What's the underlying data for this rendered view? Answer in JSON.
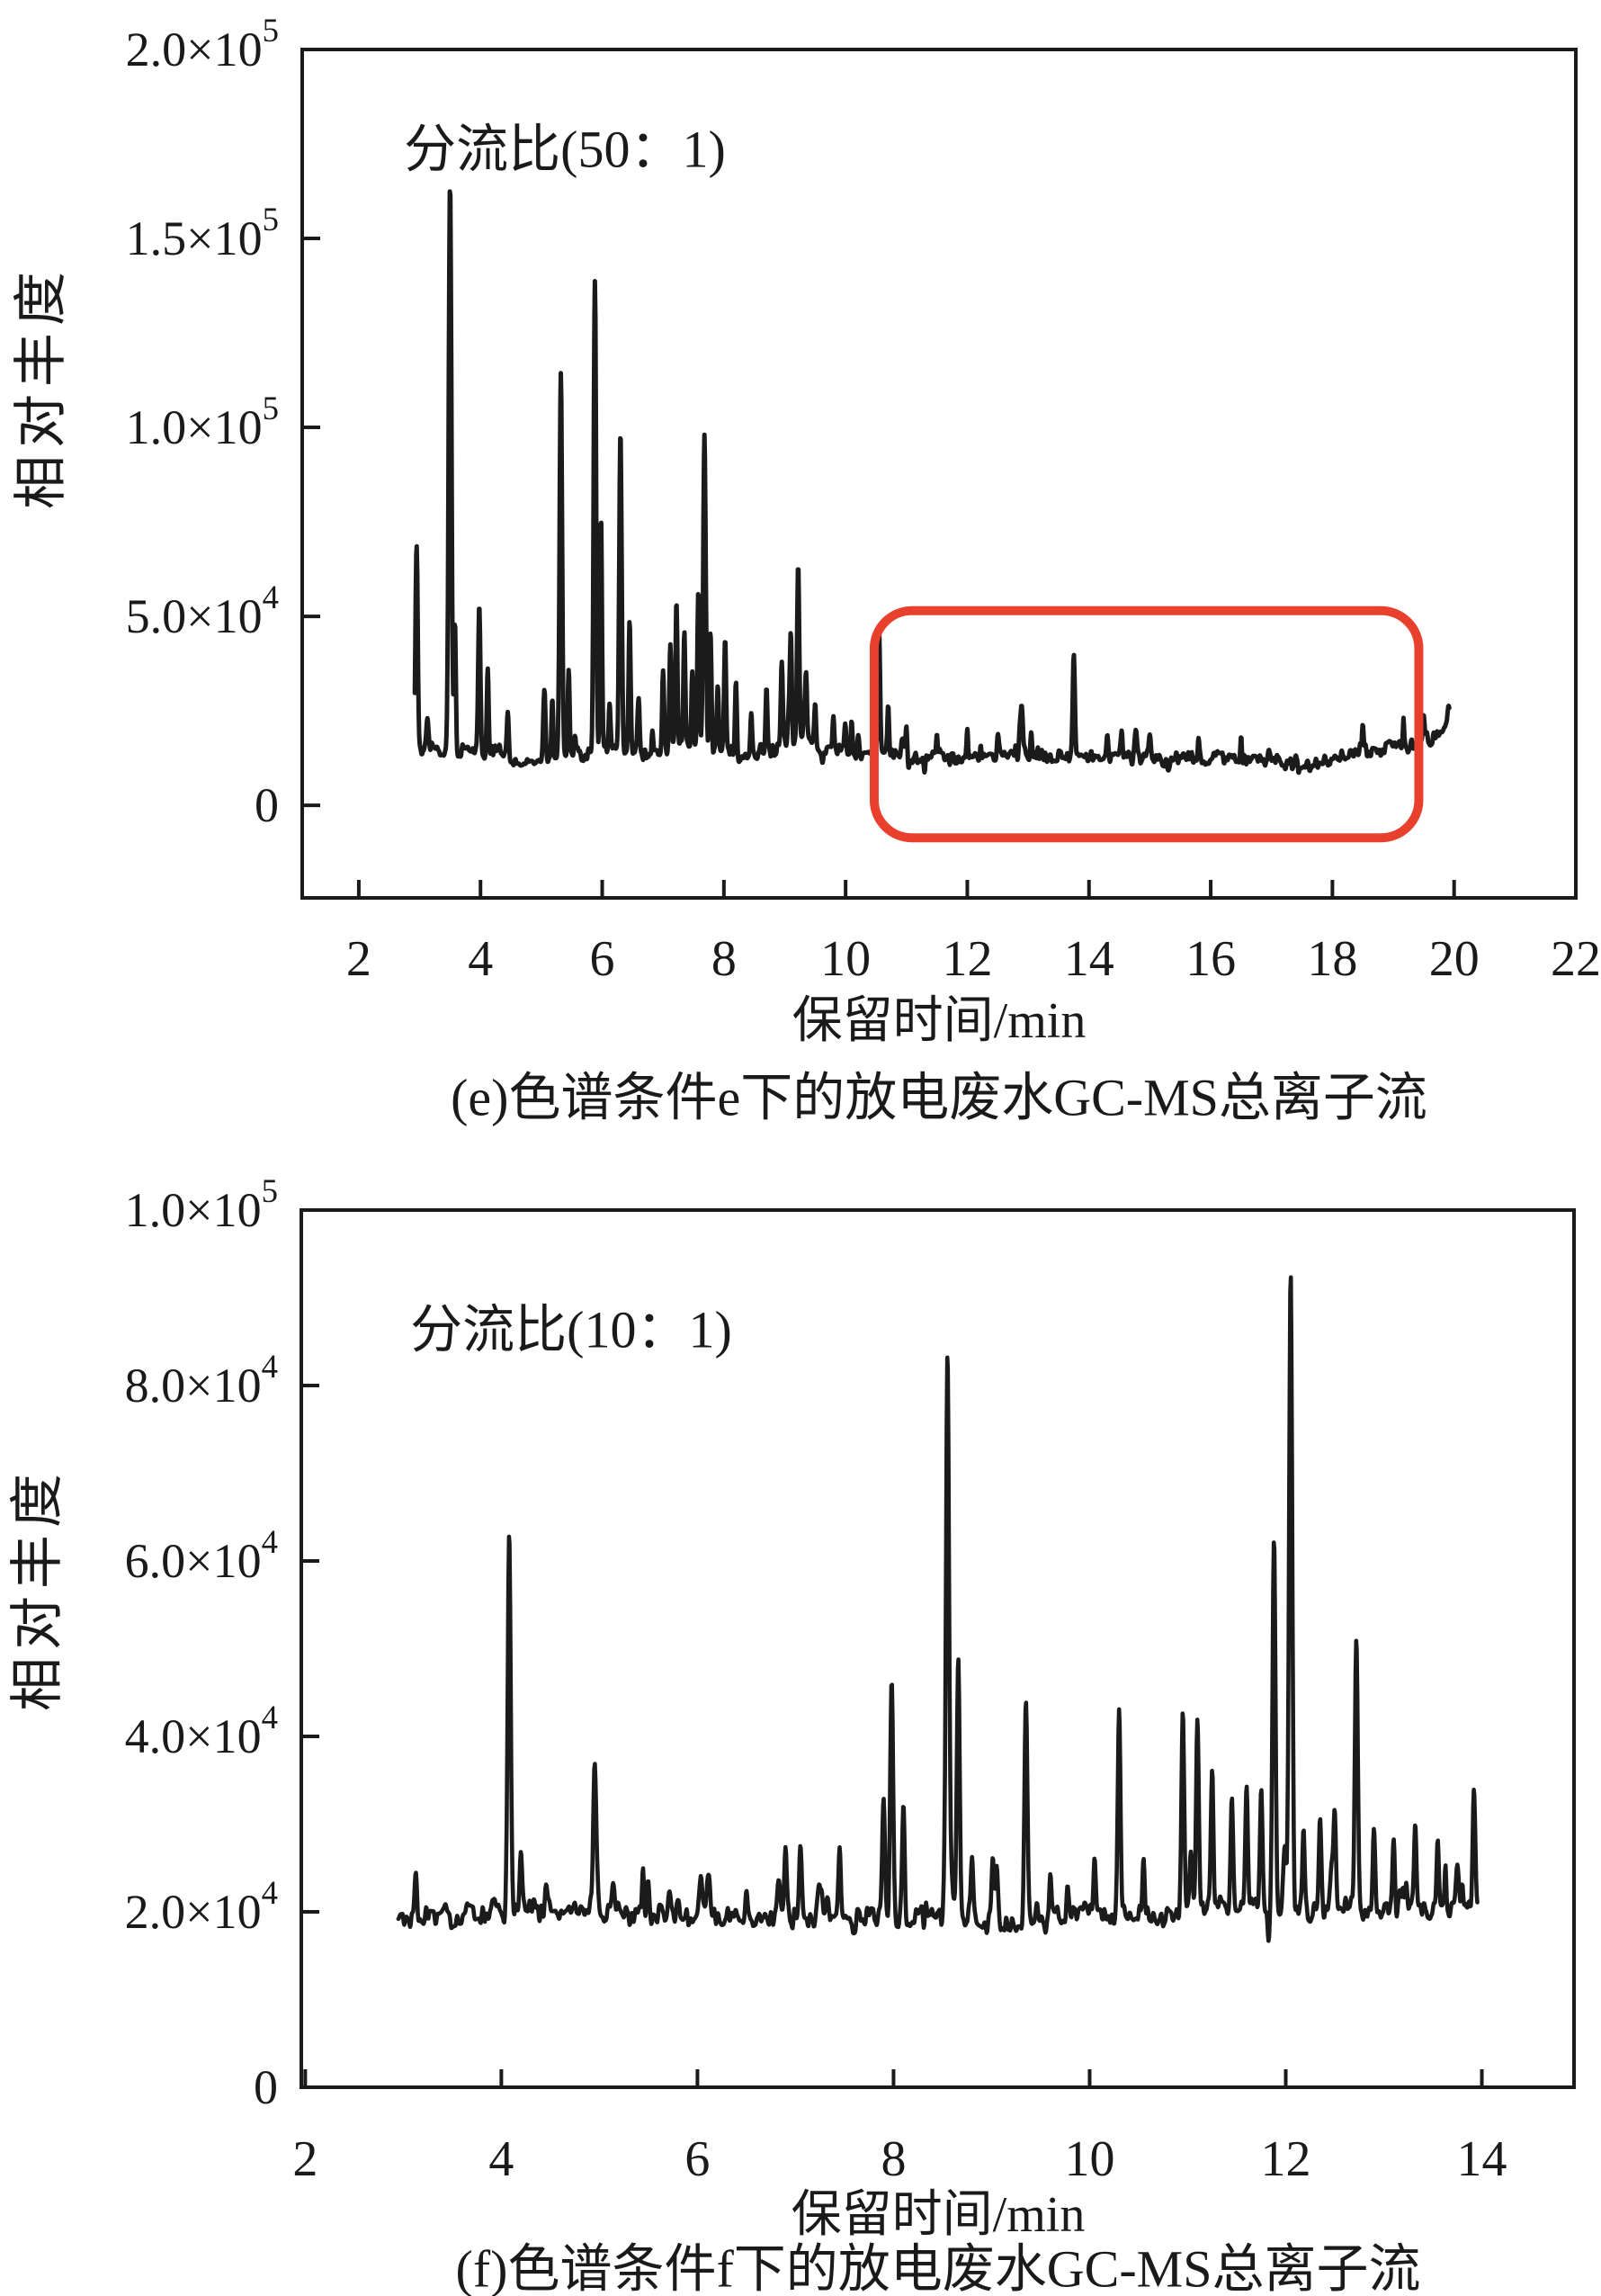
{
  "chart_data": [
    {
      "id": "e",
      "type": "line",
      "annotation": "分流比(50：1)",
      "xlabel": "保留时间/min",
      "ylabel": "相对丰度",
      "caption": "(e)色谱条件e下的放电废水GC-MS总离子流",
      "xlim": [
        1.07,
        22.0
      ],
      "ylim": [
        -24500,
        200000
      ],
      "x_ticks": [
        2,
        4,
        6,
        8,
        10,
        12,
        14,
        16,
        18,
        20,
        22
      ],
      "y_ticks": {
        "values": [
          0,
          50000,
          100000,
          150000,
          200000
        ],
        "labels": [
          "0",
          "5.0×10^4",
          "1.0×10^5",
          "1.5×10^5",
          "2.0×10^5"
        ]
      },
      "grid": false,
      "legend": null,
      "highlight_box": {
        "x0": 10.47,
        "x1": 19.42,
        "v_top": 51500,
        "v_bottom": -8600,
        "color": "#e8402d",
        "stroke": 10,
        "radius": 42
      },
      "trace": {
        "color": "#1b1b1b",
        "width": 5,
        "x_start": 2.92,
        "x_end": 19.92,
        "step": 0.008,
        "baseline": [
          [
            2.92,
            15500
          ],
          [
            3.3,
            15000
          ],
          [
            3.8,
            14500
          ],
          [
            4.3,
            13500
          ],
          [
            4.7,
            10500
          ],
          [
            5.1,
            12500
          ],
          [
            5.6,
            13000
          ],
          [
            6.2,
            15000
          ],
          [
            6.8,
            13500
          ],
          [
            7.3,
            16000
          ],
          [
            7.8,
            15500
          ],
          [
            8.3,
            13000
          ],
          [
            8.8,
            15000
          ],
          [
            9.3,
            16000
          ],
          [
            9.8,
            15000
          ],
          [
            10.3,
            13500
          ],
          [
            11.0,
            13000
          ],
          [
            12.0,
            12500
          ],
          [
            13.0,
            13000
          ],
          [
            14.0,
            13000
          ],
          [
            15.0,
            12500
          ],
          [
            16.0,
            12000
          ],
          [
            16.8,
            12500
          ],
          [
            17.4,
            11000
          ],
          [
            17.8,
            10500
          ],
          [
            18.2,
            13000
          ],
          [
            18.8,
            14500
          ],
          [
            19.3,
            16000
          ],
          [
            19.7,
            18000
          ],
          [
            19.92,
            22500
          ]
        ],
        "peaks": [
          [
            2.95,
            70000,
            0.018
          ],
          [
            3.5,
            165000,
            0.022
          ],
          [
            3.58,
            50000,
            0.015
          ],
          [
            3.98,
            53000,
            0.018
          ],
          [
            4.12,
            32000,
            0.015
          ],
          [
            4.45,
            24000,
            0.015
          ],
          [
            5.05,
            32000,
            0.018
          ],
          [
            5.18,
            28000,
            0.014
          ],
          [
            5.32,
            115000,
            0.02
          ],
          [
            5.45,
            36000,
            0.015
          ],
          [
            5.88,
            139000,
            0.02
          ],
          [
            5.98,
            78000,
            0.016
          ],
          [
            6.12,
            26000,
            0.014
          ],
          [
            6.3,
            100000,
            0.02
          ],
          [
            6.45,
            48000,
            0.016
          ],
          [
            6.6,
            28000,
            0.014
          ],
          [
            6.82,
            22000,
            0.014
          ],
          [
            7.0,
            34000,
            0.015
          ],
          [
            7.12,
            44000,
            0.016
          ],
          [
            7.22,
            54000,
            0.016
          ],
          [
            7.35,
            44000,
            0.015
          ],
          [
            7.48,
            36000,
            0.015
          ],
          [
            7.58,
            56000,
            0.016
          ],
          [
            7.68,
            99000,
            0.02
          ],
          [
            7.78,
            46000,
            0.016
          ],
          [
            7.9,
            32000,
            0.015
          ],
          [
            8.02,
            44000,
            0.016
          ],
          [
            8.2,
            30000,
            0.015
          ],
          [
            8.45,
            24000,
            0.014
          ],
          [
            8.7,
            32000,
            0.015
          ],
          [
            8.95,
            38000,
            0.016
          ],
          [
            9.1,
            44000,
            0.016
          ],
          [
            9.22,
            65000,
            0.018
          ],
          [
            9.35,
            34000,
            0.015
          ],
          [
            9.5,
            26000,
            0.014
          ],
          [
            9.8,
            25000,
            0.014
          ],
          [
            10.1,
            23000,
            0.014
          ],
          [
            10.55,
            45000,
            0.016
          ],
          [
            10.7,
            26000,
            0.014
          ],
          [
            11.0,
            20000,
            0.013
          ],
          [
            11.5,
            19000,
            0.013
          ],
          [
            12.0,
            18000,
            0.013
          ],
          [
            12.5,
            19000,
            0.013
          ],
          [
            13.05,
            21000,
            0.014
          ],
          [
            13.75,
            40000,
            0.018
          ],
          [
            14.3,
            18000,
            0.013
          ],
          [
            15.0,
            17000,
            0.013
          ],
          [
            15.8,
            18000,
            0.013
          ],
          [
            16.5,
            17000,
            0.013
          ],
          [
            18.5,
            19000,
            0.013
          ],
          [
            19.5,
            22000,
            0.014
          ],
          [
            19.85,
            24000,
            0.015
          ]
        ],
        "noise": {
          "seed": 77,
          "amp": 2600,
          "grid1": 0.028,
          "grid2": 0.1,
          "spike_rate": 5,
          "spike_max": 8000
        }
      }
    },
    {
      "id": "f",
      "type": "line",
      "annotation": "分流比(10：1)",
      "xlabel": "保留时间/min",
      "ylabel": "相对丰度",
      "caption": "(f)色谱条件f下的放电废水GC-MS总离子流",
      "xlim": [
        1.96,
        14.94
      ],
      "ylim": [
        0,
        100000
      ],
      "x_ticks": [
        2,
        4,
        6,
        8,
        10,
        12,
        14
      ],
      "y_ticks": {
        "values": [
          0,
          20000,
          40000,
          60000,
          80000,
          100000
        ],
        "labels": [
          "0",
          "2.0×10^4",
          "4.0×10^4",
          "6.0×10^4",
          "8.0×10^4",
          "1.0×10^5"
        ]
      },
      "grid": false,
      "legend": null,
      "highlight_box": null,
      "trace": {
        "color": "#1b1b1b",
        "width": 4.6,
        "x_start": 2.95,
        "x_end": 13.96,
        "step": 0.006,
        "baseline": [
          [
            2.95,
            19000
          ],
          [
            3.5,
            19500
          ],
          [
            4.0,
            20000
          ],
          [
            5.0,
            20000
          ],
          [
            6.0,
            19500
          ],
          [
            7.0,
            19500
          ],
          [
            7.8,
            19000
          ],
          [
            8.6,
            19500
          ],
          [
            9.3,
            18500
          ],
          [
            10.0,
            20000
          ],
          [
            10.8,
            19500
          ],
          [
            11.5,
            20500
          ],
          [
            12.0,
            20000
          ],
          [
            12.5,
            20500
          ],
          [
            13.0,
            20000
          ],
          [
            13.5,
            20000
          ],
          [
            13.96,
            21000
          ]
        ],
        "peaks": [
          [
            4.08,
            63000,
            0.015
          ],
          [
            4.2,
            26000,
            0.012
          ],
          [
            4.95,
            35500,
            0.014
          ],
          [
            5.5,
            24000,
            0.012
          ],
          [
            6.1,
            23000,
            0.012
          ],
          [
            6.5,
            23000,
            0.012
          ],
          [
            6.9,
            27500,
            0.013
          ],
          [
            7.05,
            28000,
            0.013
          ],
          [
            7.45,
            25000,
            0.012
          ],
          [
            7.9,
            31000,
            0.013
          ],
          [
            7.98,
            46500,
            0.015
          ],
          [
            8.1,
            32000,
            0.013
          ],
          [
            8.55,
            83000,
            0.016
          ],
          [
            8.66,
            48000,
            0.014
          ],
          [
            8.8,
            26000,
            0.012
          ],
          [
            9.35,
            44000,
            0.015
          ],
          [
            9.6,
            25000,
            0.012
          ],
          [
            10.05,
            26000,
            0.012
          ],
          [
            10.3,
            40500,
            0.014
          ],
          [
            10.55,
            26000,
            0.012
          ],
          [
            10.95,
            41500,
            0.014
          ],
          [
            11.1,
            42000,
            0.014
          ],
          [
            11.25,
            37000,
            0.013
          ],
          [
            11.45,
            33000,
            0.013
          ],
          [
            11.6,
            35000,
            0.013
          ],
          [
            11.75,
            33000,
            0.013
          ],
          [
            11.88,
            62000,
            0.015
          ],
          [
            12.05,
            93000,
            0.016
          ],
          [
            12.18,
            30000,
            0.012
          ],
          [
            12.35,
            31000,
            0.012
          ],
          [
            12.5,
            32000,
            0.013
          ],
          [
            12.72,
            50500,
            0.015
          ],
          [
            12.9,
            29000,
            0.012
          ],
          [
            13.1,
            28000,
            0.012
          ],
          [
            13.32,
            29500,
            0.012
          ],
          [
            13.55,
            27000,
            0.012
          ],
          [
            13.75,
            26000,
            0.012
          ],
          [
            13.92,
            34000,
            0.013
          ]
        ],
        "noise": {
          "seed": 31,
          "amp": 1700,
          "grid1": 0.02,
          "grid2": 0.08,
          "spike_rate": 6,
          "spike_max": 5500
        }
      }
    }
  ]
}
